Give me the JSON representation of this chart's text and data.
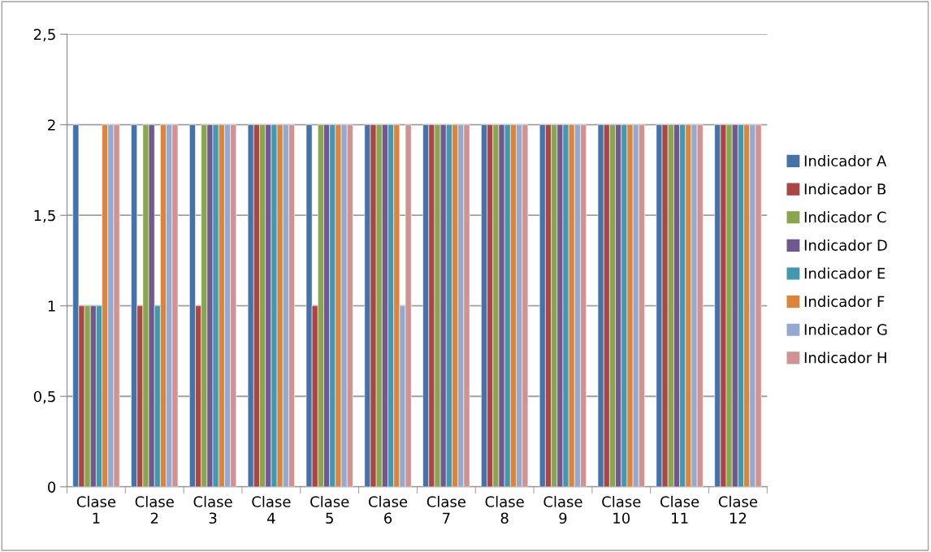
{
  "chart_data": {
    "type": "bar",
    "categories": [
      "Clase 1",
      "Clase 2",
      "Clase 3",
      "Clase 4",
      "Clase 5",
      "Clase 6",
      "Clase 7",
      "Clase 8",
      "Clase 9",
      "Clase 10",
      "Clase 11",
      "Clase 12"
    ],
    "series": [
      {
        "name": "Indicador A",
        "color": "#4572a7",
        "values": [
          2,
          2,
          2,
          2,
          2,
          2,
          2,
          2,
          2,
          2,
          2,
          2
        ]
      },
      {
        "name": "Indicador B",
        "color": "#aa4643",
        "values": [
          1,
          1,
          1,
          2,
          1,
          2,
          2,
          2,
          2,
          2,
          2,
          2
        ]
      },
      {
        "name": "Indicador C",
        "color": "#89a54e",
        "values": [
          1,
          2,
          2,
          2,
          2,
          2,
          2,
          2,
          2,
          2,
          2,
          2
        ]
      },
      {
        "name": "Indicador D",
        "color": "#71588f",
        "values": [
          1,
          2,
          2,
          2,
          2,
          2,
          2,
          2,
          2,
          2,
          2,
          2
        ]
      },
      {
        "name": "Indicador E",
        "color": "#4198af",
        "values": [
          1,
          1,
          2,
          2,
          2,
          2,
          2,
          2,
          2,
          2,
          2,
          2
        ]
      },
      {
        "name": "Indicador F",
        "color": "#db843d",
        "values": [
          2,
          2,
          2,
          2,
          2,
          2,
          2,
          2,
          2,
          2,
          2,
          2
        ]
      },
      {
        "name": "Indicador G",
        "color": "#93a9cf",
        "values": [
          2,
          2,
          2,
          2,
          2,
          1,
          2,
          2,
          2,
          2,
          2,
          2
        ]
      },
      {
        "name": "Indicador H",
        "color": "#d19392",
        "values": [
          2,
          2,
          2,
          2,
          2,
          2,
          2,
          2,
          2,
          2,
          2,
          2
        ]
      }
    ],
    "ylim": [
      0,
      2.5
    ],
    "yticks": [
      0,
      {
        "value": 0.5,
        "label": "0,5"
      },
      1,
      {
        "value": 1.5,
        "label": "1,5"
      },
      2,
      {
        "value": 2.5,
        "label": "2,5"
      }
    ],
    "grid": "y",
    "legend": "right"
  }
}
